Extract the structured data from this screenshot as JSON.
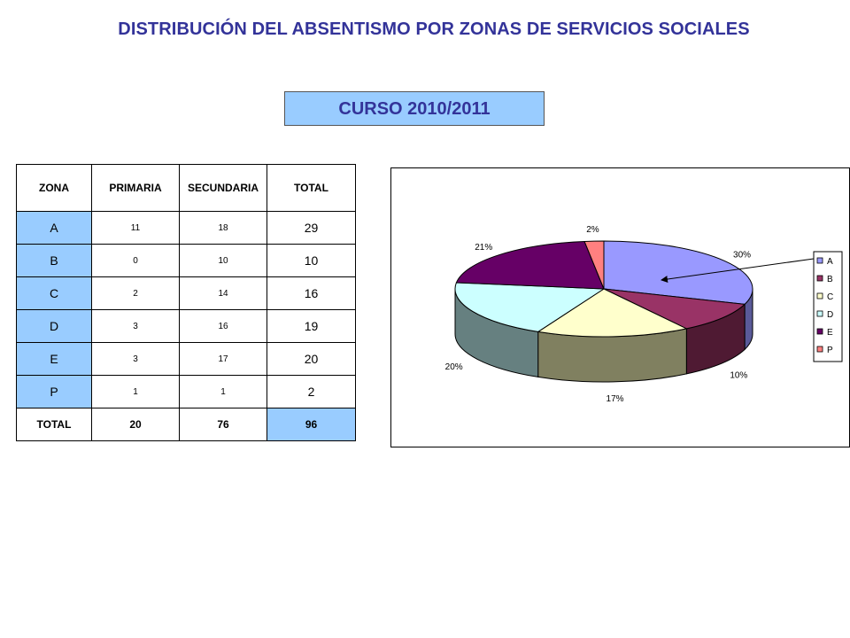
{
  "title": "DISTRIBUCIÓN DEL ABSENTISMO POR ZONAS DE SERVICIOS SOCIALES",
  "course": "CURSO 2010/2011",
  "table": {
    "headers": [
      "ZONA",
      "PRIMARIA",
      "SECUNDARIA",
      "TOTAL"
    ],
    "rows": [
      {
        "zona": "A",
        "primaria": "11",
        "secundaria": "18",
        "total": "29"
      },
      {
        "zona": "B",
        "primaria": "0",
        "secundaria": "10",
        "total": "10"
      },
      {
        "zona": "C",
        "primaria": "2",
        "secundaria": "14",
        "total": "16"
      },
      {
        "zona": "D",
        "primaria": "3",
        "secundaria": "16",
        "total": "19"
      },
      {
        "zona": "E",
        "primaria": "3",
        "secundaria": "17",
        "total": "20"
      },
      {
        "zona": "P",
        "primaria": "1",
        "secundaria": "1",
        "total": "2"
      }
    ],
    "totals": {
      "label": "TOTAL",
      "primaria": "20",
      "secundaria": "76",
      "total": "96"
    }
  },
  "chart_data": {
    "type": "pie",
    "title": "",
    "legend_position": "right",
    "categories": [
      "A",
      "B",
      "C",
      "D",
      "E",
      "P"
    ],
    "values": [
      29,
      10,
      16,
      19,
      20,
      2
    ],
    "labels": [
      "30%",
      "10%",
      "17%",
      "20%",
      "21%",
      "2%"
    ],
    "colors": [
      "#9999ff",
      "#993366",
      "#ffffcc",
      "#ccffff",
      "#660066",
      "#ff8080"
    ],
    "side_colors": [
      "#5a5a99",
      "#4f1a33",
      "#808060",
      "#668080",
      "#330033",
      "#804040"
    ]
  }
}
